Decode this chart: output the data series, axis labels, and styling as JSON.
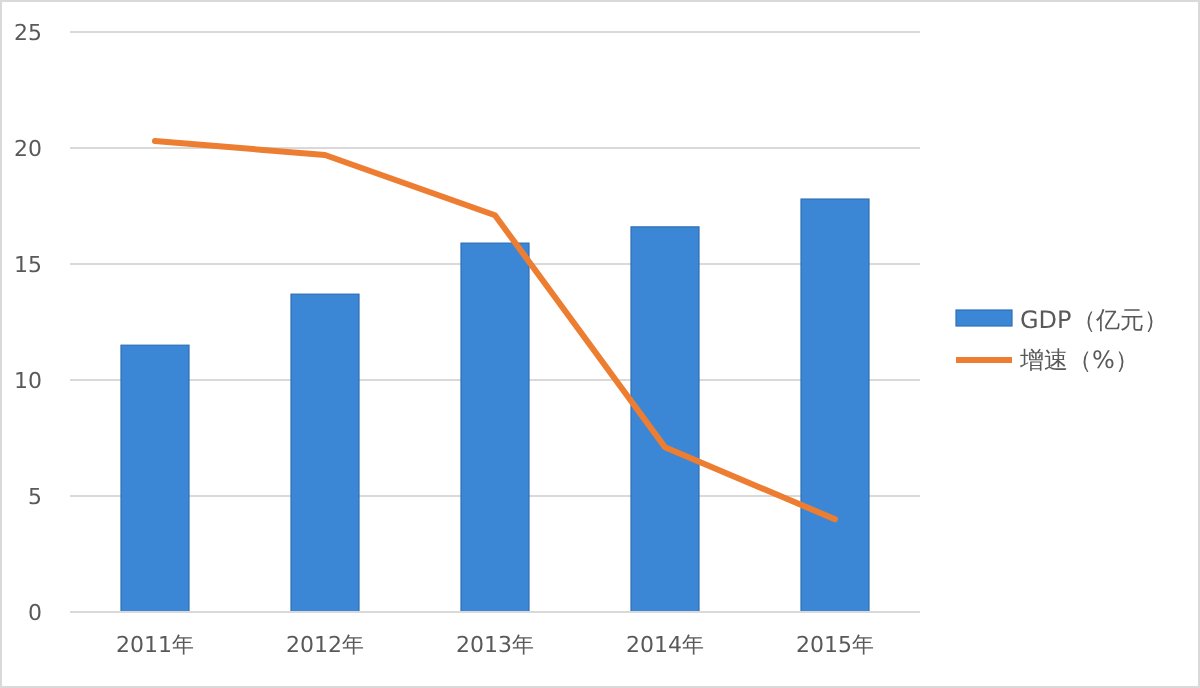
{
  "chart_data": {
    "type": "bar",
    "categories": [
      "2011年",
      "2012年",
      "2013年",
      "2014年",
      "2015年"
    ],
    "series": [
      {
        "name": "GDP（亿元）",
        "color": "#3b87d6",
        "values": [
          11.5,
          13.7,
          15.9,
          16.6,
          17.8
        ]
      },
      {
        "name": "增速（%）",
        "type": "line",
        "color": "#ed7d31",
        "values": [
          20.3,
          19.7,
          17.1,
          7.1,
          4.0
        ]
      }
    ],
    "ylim": [
      0,
      25
    ],
    "yticks": [
      0,
      5,
      10,
      15,
      20,
      25
    ],
    "grid": "y",
    "legend": "right",
    "marker": "none",
    "line_style": "solid"
  }
}
